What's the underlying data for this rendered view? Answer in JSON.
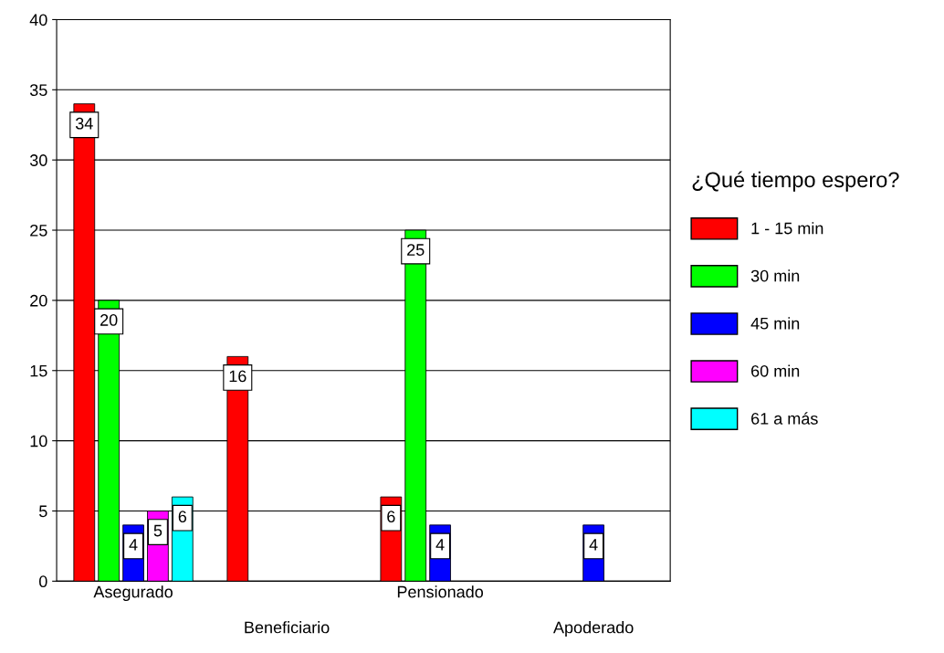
{
  "chart_data": {
    "type": "bar",
    "categories": [
      "Asegurado",
      "Beneficiario",
      "Pensionado",
      "Apoderado"
    ],
    "legend_title": "¿Qué tiempo espero?",
    "series": [
      {
        "name": "1 - 15 min",
        "color": "#ff0000",
        "values": [
          34,
          16,
          6,
          null
        ]
      },
      {
        "name": "30 min",
        "color": "#00ff00",
        "values": [
          20,
          null,
          25,
          null
        ]
      },
      {
        "name": "45 min",
        "color": "#0000ff",
        "values": [
          4,
          null,
          4,
          4
        ]
      },
      {
        "name": "60 min",
        "color": "#ff00ff",
        "values": [
          5,
          null,
          null,
          null
        ]
      },
      {
        "name": "61 a más",
        "color": "#00ffff",
        "values": [
          6,
          null,
          null,
          null
        ]
      }
    ],
    "ylim": [
      0,
      40
    ],
    "yticks": [
      0,
      5,
      10,
      15,
      20,
      25,
      30,
      35,
      40
    ],
    "grid": "y",
    "legend": "right",
    "data_labels": true
  }
}
